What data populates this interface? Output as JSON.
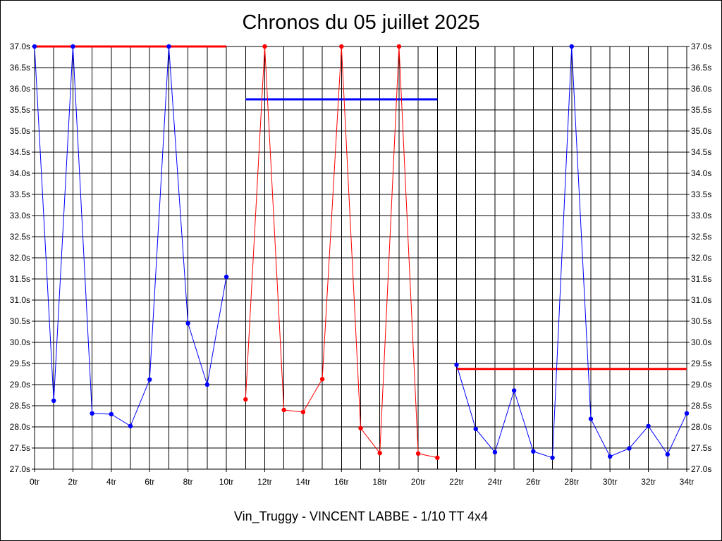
{
  "title": "Chronos du 05 juillet 2025",
  "footer": "Vin_Truggy - VINCENT LABBE - 1/10 TT 4x4",
  "colors": {
    "blue": "#0000ff",
    "red": "#ff0000",
    "grid": "#000000",
    "background": "#ffffff"
  },
  "chart_data": {
    "type": "line",
    "title": "Chronos du 05 juillet 2025",
    "xlim": [
      0,
      34
    ],
    "ylim": [
      27.0,
      37.0
    ],
    "grid": true,
    "x_ticks": [
      "0tr",
      "2tr",
      "4tr",
      "6tr",
      "8tr",
      "10tr",
      "12tr",
      "14tr",
      "16tr",
      "18tr",
      "20tr",
      "22tr",
      "24tr",
      "26tr",
      "28tr",
      "30tr",
      "32tr",
      "34tr"
    ],
    "y_ticks": [
      "27.0s",
      "27.5s",
      "28.0s",
      "28.5s",
      "29.0s",
      "29.5s",
      "30.0s",
      "30.5s",
      "31.0s",
      "31.5s",
      "32.0s",
      "32.5s",
      "33.0s",
      "33.5s",
      "34.0s",
      "34.5s",
      "35.0s",
      "35.5s",
      "36.0s",
      "36.5s",
      "37.0s"
    ],
    "series": [
      {
        "color": "#0000ff",
        "x": [
          0,
          1,
          2,
          3,
          4,
          5,
          6,
          7,
          8,
          9,
          10
        ],
        "values": [
          37.0,
          28.62,
          37.0,
          28.32,
          28.3,
          28.02,
          29.12,
          37.0,
          30.45,
          29.0,
          31.55
        ]
      },
      {
        "color": "#ff0000",
        "x": [
          11,
          12,
          13,
          14,
          15,
          16,
          17,
          18,
          19,
          20,
          21
        ],
        "values": [
          28.65,
          37.0,
          28.4,
          28.35,
          29.13,
          37.0,
          27.97,
          27.38,
          37.0,
          27.37,
          27.27
        ]
      },
      {
        "color": "#0000ff",
        "x": [
          22,
          23,
          24,
          25,
          26,
          27,
          28,
          29,
          30,
          31,
          32,
          33,
          34
        ],
        "values": [
          29.47,
          27.95,
          27.4,
          28.86,
          27.42,
          27.27,
          37.0,
          28.19,
          27.3,
          27.49,
          28.02,
          27.35,
          28.32
        ]
      }
    ],
    "reference_lines": [
      {
        "color": "#ff0000",
        "x_start": 0,
        "x_end": 10,
        "value": 37.0
      },
      {
        "color": "#0000ff",
        "x_start": 11,
        "x_end": 21,
        "value": 35.75
      },
      {
        "color": "#ff0000",
        "x_start": 22,
        "x_end": 34,
        "value": 29.37
      }
    ]
  }
}
